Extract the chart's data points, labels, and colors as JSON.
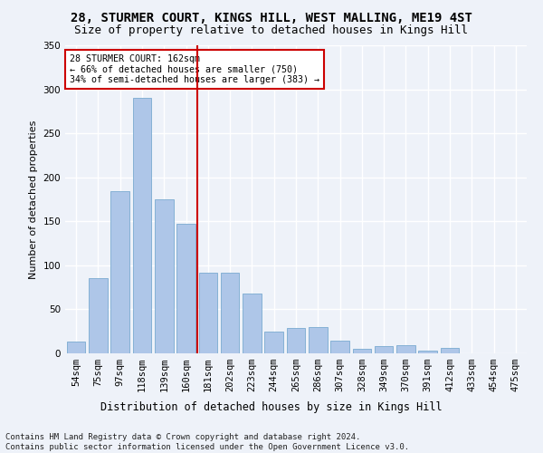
{
  "title": "28, STURMER COURT, KINGS HILL, WEST MALLING, ME19 4ST",
  "subtitle": "Size of property relative to detached houses in Kings Hill",
  "xlabel": "Distribution of detached houses by size in Kings Hill",
  "ylabel": "Number of detached properties",
  "categories": [
    "54sqm",
    "75sqm",
    "97sqm",
    "118sqm",
    "139sqm",
    "160sqm",
    "181sqm",
    "202sqm",
    "223sqm",
    "244sqm",
    "265sqm",
    "286sqm",
    "307sqm",
    "328sqm",
    "349sqm",
    "370sqm",
    "391sqm",
    "412sqm",
    "433sqm",
    "454sqm",
    "475sqm"
  ],
  "values": [
    13,
    85,
    184,
    290,
    175,
    147,
    92,
    92,
    68,
    25,
    29,
    30,
    14,
    5,
    8,
    9,
    3,
    6,
    0,
    0,
    0
  ],
  "bar_color": "#aec6e8",
  "bar_edge_color": "#7aaad0",
  "vline_x": 5.5,
  "vline_color": "#cc0000",
  "annotation_text": "28 STURMER COURT: 162sqm\n← 66% of detached houses are smaller (750)\n34% of semi-detached houses are larger (383) →",
  "annotation_box_color": "#ffffff",
  "annotation_box_edge": "#cc0000",
  "footer": "Contains HM Land Registry data © Crown copyright and database right 2024.\nContains public sector information licensed under the Open Government Licence v3.0.",
  "background_color": "#eef2f9",
  "grid_color": "#ffffff",
  "title_fontsize": 10,
  "subtitle_fontsize": 9,
  "ylabel_fontsize": 8,
  "xlabel_fontsize": 8.5,
  "tick_fontsize": 7.5,
  "footer_fontsize": 6.5,
  "ylim": [
    0,
    350
  ],
  "yticks": [
    0,
    50,
    100,
    150,
    200,
    250,
    300,
    350
  ]
}
